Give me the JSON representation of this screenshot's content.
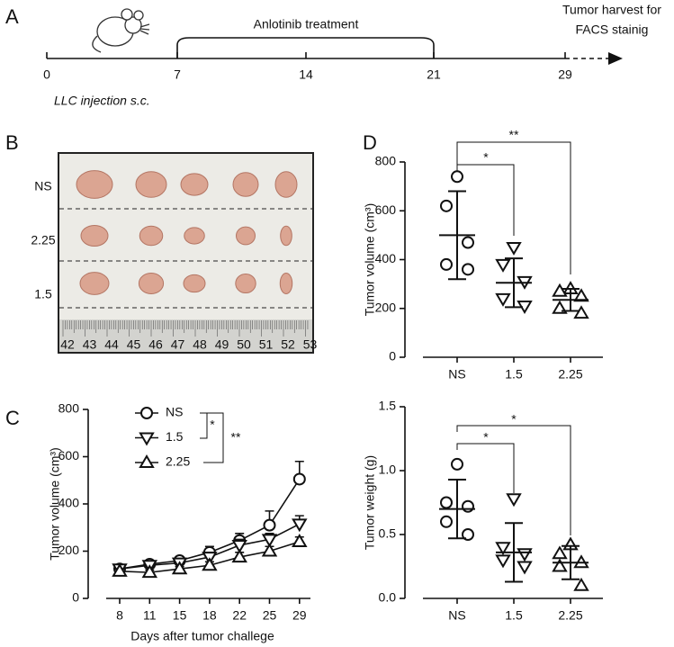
{
  "panel_labels": [
    "A",
    "B",
    "C",
    "D"
  ],
  "timeline": {
    "ticks": [
      0,
      7,
      14,
      21,
      29
    ],
    "treatment": "Anlotinib treatment",
    "end_note": [
      "Tumor harvest for",
      "FACS stainig"
    ],
    "start_note": "LLC injection s.c."
  },
  "photo": {
    "rows": [
      "NS",
      "2.25",
      "1.5"
    ],
    "ruler": [
      42,
      43,
      44,
      45,
      46,
      47,
      48,
      49,
      50,
      51,
      52,
      53
    ]
  },
  "chart_data": [
    {
      "type": "line",
      "y_label": "Tumor volume (cm³)",
      "x_label": "Days after tumor challege",
      "categories": [
        "8",
        "11",
        "15",
        "18",
        "22",
        "25",
        "29"
      ],
      "series": [
        {
          "name": "NS",
          "marker": "circle",
          "color": "#111111",
          "values": [
            125,
            145,
            160,
            195,
            245,
            310,
            505
          ],
          "errors": [
            15,
            15,
            15,
            25,
            30,
            60,
            75
          ]
        },
        {
          "name": "1.5",
          "marker": "triangle-down",
          "color": "#111111",
          "values": [
            125,
            140,
            150,
            175,
            225,
            250,
            315
          ],
          "errors": [
            15,
            15,
            15,
            20,
            25,
            25,
            35
          ]
        },
        {
          "name": "2.25",
          "marker": "triangle-up",
          "color": "#111111",
          "values": [
            115,
            110,
            125,
            140,
            175,
            200,
            240
          ],
          "errors": [
            10,
            10,
            10,
            15,
            20,
            20,
            20
          ]
        }
      ],
      "ylim": [
        0,
        800
      ],
      "yticks": [
        0,
        200,
        400,
        600,
        800
      ],
      "annotations": [
        "*",
        "**"
      ]
    },
    {
      "type": "dotplot",
      "y_label": "Tumor volume (cm³)",
      "categories": [
        "NS",
        "1.5",
        "2.25"
      ],
      "markers": [
        "circle",
        "triangle-down",
        "triangle-up"
      ],
      "color": "#111111",
      "points": [
        [
          740,
          620,
          470,
          380,
          360
        ],
        [
          450,
          380,
          310,
          240,
          210
        ],
        [
          280,
          270,
          250,
          200,
          180
        ]
      ],
      "means": [
        500,
        305,
        235
      ],
      "sds": [
        180,
        100,
        45
      ],
      "ylim": [
        0,
        800
      ],
      "yticks": [
        0,
        200,
        400,
        600,
        800
      ],
      "annotations": [
        "*",
        "**"
      ]
    },
    {
      "type": "dotplot",
      "y_label": "Tumor weight (g)",
      "categories": [
        "NS",
        "1.5",
        "2.25"
      ],
      "markers": [
        "circle",
        "triangle-down",
        "triangle-up"
      ],
      "color": "#111111",
      "points": [
        [
          1.05,
          0.75,
          0.72,
          0.6,
          0.5
        ],
        [
          0.78,
          0.4,
          0.35,
          0.3,
          0.25
        ],
        [
          0.42,
          0.35,
          0.28,
          0.25,
          0.1
        ]
      ],
      "means": [
        0.7,
        0.36,
        0.28
      ],
      "sds": [
        0.23,
        0.23,
        0.13
      ],
      "ylim": [
        0,
        1.5
      ],
      "yticks": [
        {
          "value": 0,
          "label": "0.0"
        },
        0.5,
        {
          "value": 1,
          "label": "1.0"
        },
        1.5
      ],
      "annotations": [
        "*",
        "*"
      ]
    }
  ]
}
